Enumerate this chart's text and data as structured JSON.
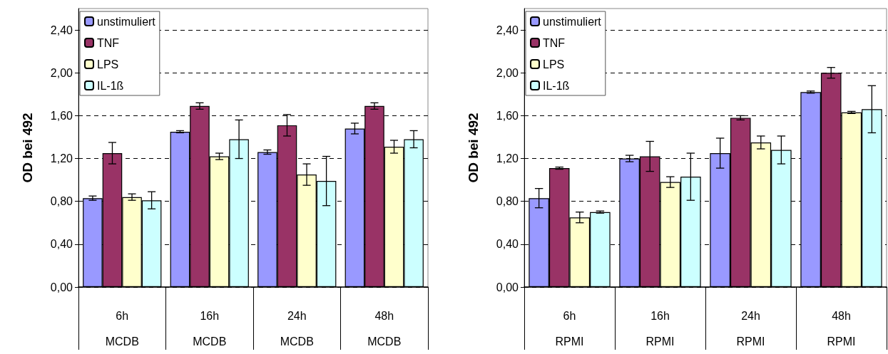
{
  "chart_data": [
    {
      "type": "bar",
      "ylabel": "OD bei 492",
      "categories": [
        "6h\nMCDB",
        "16h\nMCDB",
        "24h\nMCDB",
        "48h\nMCDB"
      ],
      "series": [
        {
          "name": "unstimuliert",
          "color": "#9999ff",
          "values": [
            0.83,
            1.45,
            1.26,
            1.48
          ],
          "errors": [
            0.02,
            0.01,
            0.02,
            0.05
          ]
        },
        {
          "name": "TNF",
          "color": "#993366",
          "values": [
            1.25,
            1.69,
            1.51,
            1.69
          ],
          "errors": [
            0.1,
            0.03,
            0.1,
            0.03
          ]
        },
        {
          "name": "LPS",
          "color": "#ffffcc",
          "values": [
            0.84,
            1.22,
            1.05,
            1.31
          ],
          "errors": [
            0.03,
            0.03,
            0.1,
            0.06
          ]
        },
        {
          "name": "IL-1ß",
          "color": "#ccffff",
          "values": [
            0.81,
            1.38,
            0.99,
            1.38
          ],
          "errors": [
            0.08,
            0.18,
            0.23,
            0.08
          ]
        }
      ],
      "ylim": [
        0,
        2.6
      ],
      "yticks": [
        {
          "value": 0,
          "label": "0,00"
        },
        {
          "value": 0.4,
          "label": "0,40"
        },
        {
          "value": 0.8,
          "label": "0,80"
        },
        {
          "value": 1.2,
          "label": "1,20"
        },
        {
          "value": 1.6,
          "label": "1,60"
        },
        {
          "value": 2.0,
          "label": "2,00"
        },
        {
          "value": 2.4,
          "label": "2,40"
        }
      ],
      "grid": "y",
      "legend": "top left"
    },
    {
      "type": "bar",
      "ylabel": "OD bei 492",
      "categories": [
        "6h\nRPMI",
        "16h\nRPMI",
        "24h\nRPMI",
        "48h\nRPMI"
      ],
      "series": [
        {
          "name": "unstimuliert",
          "color": "#9999ff",
          "values": [
            0.83,
            1.2,
            1.25,
            1.82
          ],
          "errors": [
            0.09,
            0.03,
            0.14,
            0.01
          ]
        },
        {
          "name": "TNF",
          "color": "#993366",
          "values": [
            1.11,
            1.22,
            1.58,
            2.0
          ],
          "errors": [
            0.01,
            0.14,
            0.02,
            0.05
          ]
        },
        {
          "name": "LPS",
          "color": "#ffffcc",
          "values": [
            0.65,
            0.98,
            1.35,
            1.63
          ],
          "errors": [
            0.05,
            0.05,
            0.06,
            0.01
          ]
        },
        {
          "name": "IL-1ß",
          "color": "#ccffff",
          "values": [
            0.7,
            1.03,
            1.28,
            1.66
          ],
          "errors": [
            0.01,
            0.22,
            0.13,
            0.22
          ]
        }
      ],
      "ylim": [
        0,
        2.6
      ],
      "yticks": [
        {
          "value": 0,
          "label": "0,00"
        },
        {
          "value": 0.4,
          "label": "0,40"
        },
        {
          "value": 0.8,
          "label": "0,80"
        },
        {
          "value": 1.2,
          "label": "1,20"
        },
        {
          "value": 1.6,
          "label": "1,60"
        },
        {
          "value": 2.0,
          "label": "2,00"
        },
        {
          "value": 2.4,
          "label": "2,40"
        }
      ],
      "grid": "y",
      "legend": "top left"
    }
  ]
}
